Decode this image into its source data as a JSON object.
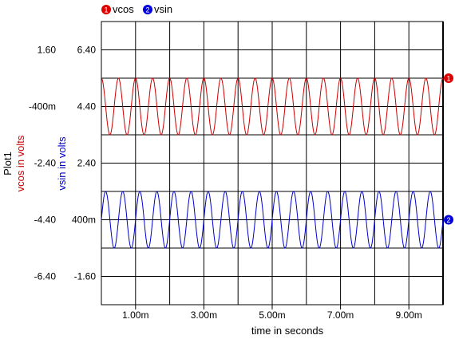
{
  "chart_data": {
    "type": "line",
    "title": "Plot1",
    "xlabel": "time in seconds",
    "x_ticks": [
      "1.00m",
      "3.00m",
      "5.00m",
      "7.00m",
      "9.00m"
    ],
    "x_range": [
      0,
      0.01
    ],
    "grid": true,
    "series": [
      {
        "name": "vcos",
        "marker": "1",
        "ylabel": "vcos in volts",
        "color": "#cc0000",
        "y_ticks": [
          "1.60",
          "-400m",
          "-2.40",
          "-4.40",
          "-6.40"
        ],
        "y_tick_values": [
          1.6,
          -0.4,
          -2.4,
          -4.4,
          -6.4
        ],
        "amplitude": 2,
        "offset": 0,
        "frequency_hz": 2000,
        "phase": "cos"
      },
      {
        "name": "vsin",
        "marker": "2",
        "ylabel": "vsin in volts",
        "color": "#0000cc",
        "y_ticks": [
          "6.40",
          "4.40",
          "2.40",
          "400m",
          "-1.60"
        ],
        "y_tick_values": [
          6.4,
          4.4,
          2.4,
          0.4,
          -1.6
        ],
        "amplitude": 2,
        "offset": 0,
        "frequency_hz": 2000,
        "phase": "sin"
      }
    ]
  }
}
